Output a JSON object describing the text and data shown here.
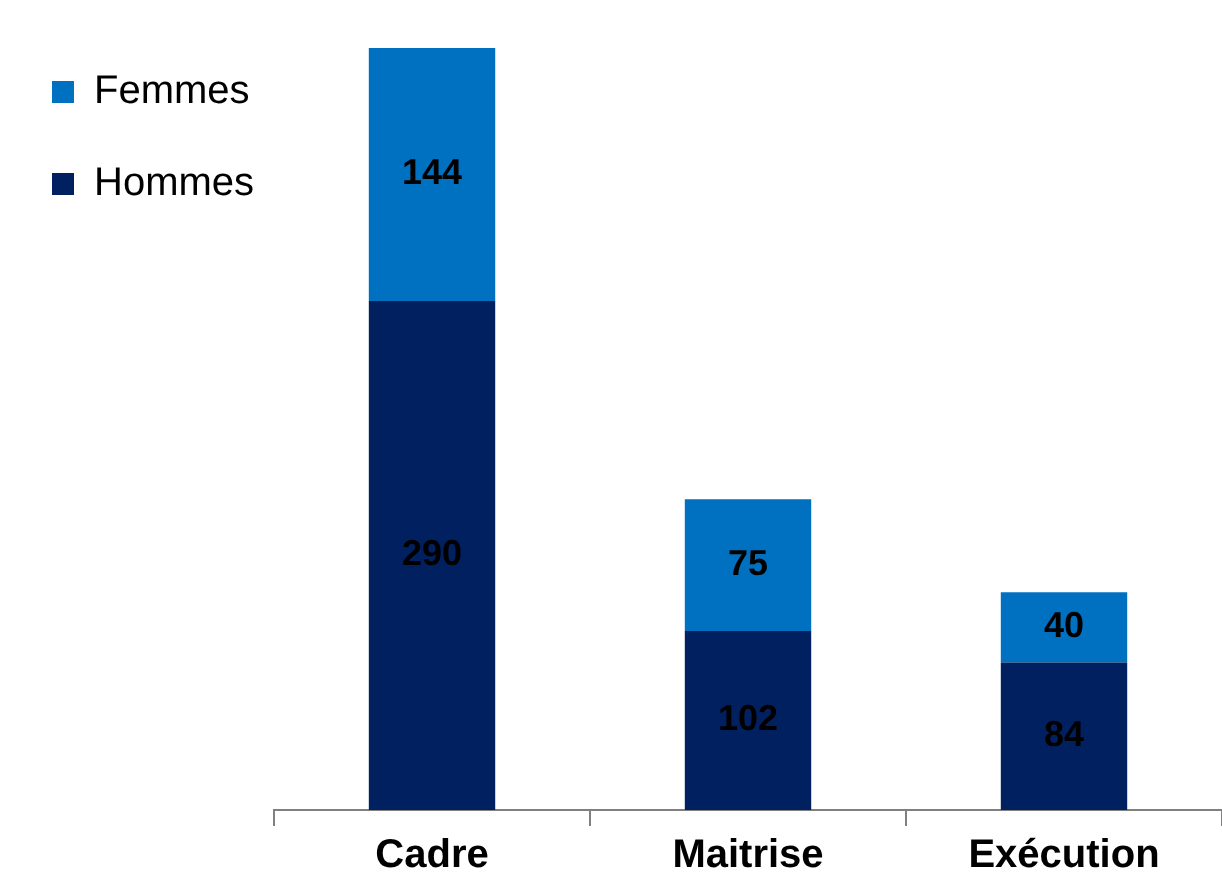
{
  "chart_data": {
    "type": "bar",
    "stacked": true,
    "categories": [
      "Cadre",
      "Maitrise",
      "Exécution"
    ],
    "series": [
      {
        "name": "Hommes",
        "color": "#002060",
        "values": [
          290,
          102,
          84
        ]
      },
      {
        "name": "Femmes",
        "color": "#0070c0",
        "values": [
          144,
          75,
          40
        ]
      }
    ],
    "data_labels": true,
    "legend": "top left",
    "grid": false
  }
}
